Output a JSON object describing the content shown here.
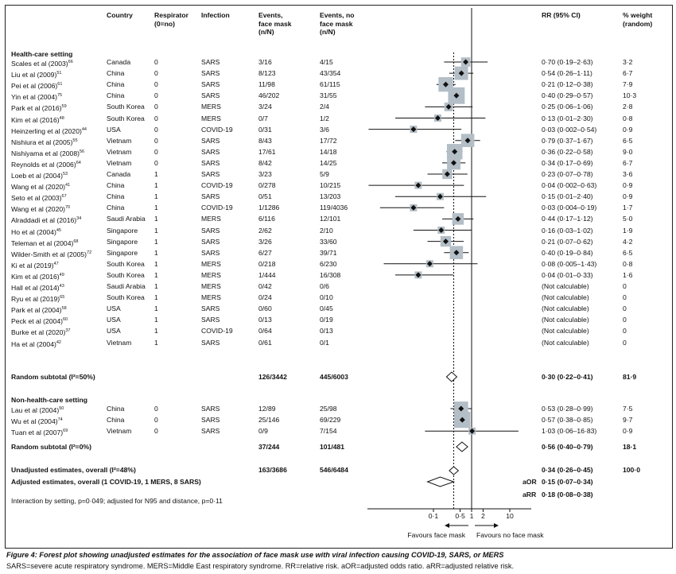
{
  "headers": {
    "country": "Country",
    "respirator": "Respirator\n(0=no)",
    "infection": "Infection",
    "events_mask": "Events,\nface mask\n(n/N)",
    "events_nomask": "Events, no\nface mask\n(n/N)",
    "rr": "RR (95% CI)",
    "weight": "% weight\n(random)"
  },
  "sections": {
    "hcs": "Health-care setting",
    "nhcs": "Non-health-care setting"
  },
  "studies": [
    {
      "study": "Scales et al (2003)",
      "ref": "66",
      "country": "Canada",
      "resp": "0",
      "infection": "SARS",
      "mask": "3/16",
      "nomask": "4/15",
      "rr_text": "0·70 (0·19–2·63)",
      "weight": "3·2",
      "rr": 0.7,
      "lo": 0.19,
      "hi": 2.63,
      "w": 3.2,
      "group": "hcs"
    },
    {
      "study": "Liu et al (2009)",
      "ref": "51",
      "country": "China",
      "resp": "0",
      "infection": "SARS",
      "mask": "8/123",
      "nomask": "43/354",
      "rr_text": "0·54 (0·26–1·11)",
      "weight": "6·7",
      "rr": 0.54,
      "lo": 0.26,
      "hi": 1.11,
      "w": 6.7,
      "group": "hcs"
    },
    {
      "study": "Pei et al (2006)",
      "ref": "61",
      "country": "China",
      "resp": "0",
      "infection": "SARS",
      "mask": "11/98",
      "nomask": "61/115",
      "rr_text": "0·21 (0·12–0·38)",
      "weight": "7·9",
      "rr": 0.21,
      "lo": 0.12,
      "hi": 0.38,
      "w": 7.9,
      "group": "hcs"
    },
    {
      "study": "Yin et al (2004)",
      "ref": "75",
      "country": "China",
      "resp": "0",
      "infection": "SARS",
      "mask": "46/202",
      "nomask": "31/55",
      "rr_text": "0·40 (0·29–0·57)",
      "weight": "10·3",
      "rr": 0.4,
      "lo": 0.29,
      "hi": 0.57,
      "w": 10.3,
      "group": "hcs"
    },
    {
      "study": "Park et al (2016)",
      "ref": "59",
      "country": "South Korea",
      "resp": "0",
      "infection": "MERS",
      "mask": "3/24",
      "nomask": "2/4",
      "rr_text": "0·25 (0·06–1·06)",
      "weight": "2·8",
      "rr": 0.25,
      "lo": 0.06,
      "hi": 1.06,
      "w": 2.8,
      "group": "hcs"
    },
    {
      "study": "Kim et al (2016)",
      "ref": "48",
      "country": "South Korea",
      "resp": "0",
      "infection": "MERS",
      "mask": "0/7",
      "nomask": "1/2",
      "rr_text": "0·13 (0·01–2·30)",
      "weight": "0·8",
      "rr": 0.13,
      "lo": 0.01,
      "hi": 2.3,
      "w": 0.8,
      "group": "hcs"
    },
    {
      "study": "Heinzerling et al (2020)",
      "ref": "44",
      "country": "USA",
      "resp": "0",
      "infection": "COVID-19",
      "mask": "0/31",
      "nomask": "3/6",
      "rr_text": "0·03 (0·002–0·54)",
      "weight": "0·9",
      "rr": 0.03,
      "lo": 0.002,
      "hi": 0.54,
      "w": 0.9,
      "group": "hcs"
    },
    {
      "study": "Nishiura et al (2005)",
      "ref": "55",
      "country": "Vietnam",
      "resp": "0",
      "infection": "SARS",
      "mask": "8/43",
      "nomask": "17/72",
      "rr_text": "0·79 (0·37–1·67)",
      "weight": "6·5",
      "rr": 0.79,
      "lo": 0.37,
      "hi": 1.67,
      "w": 6.5,
      "group": "hcs"
    },
    {
      "study": "Nishiyama et al (2008)",
      "ref": "56",
      "country": "Vietnam",
      "resp": "0",
      "infection": "SARS",
      "mask": "17/61",
      "nomask": "14/18",
      "rr_text": "0·36 (0·22–0·58)",
      "weight": "9·0",
      "rr": 0.36,
      "lo": 0.22,
      "hi": 0.58,
      "w": 9.0,
      "group": "hcs"
    },
    {
      "study": "Reynolds et al (2006)",
      "ref": "64",
      "country": "Vietnam",
      "resp": "0",
      "infection": "SARS",
      "mask": "8/42",
      "nomask": "14/25",
      "rr_text": "0·34 (0·17–0·69)",
      "weight": "6·7",
      "rr": 0.34,
      "lo": 0.17,
      "hi": 0.69,
      "w": 6.7,
      "group": "hcs"
    },
    {
      "study": "Loeb et al (2004)",
      "ref": "53",
      "country": "Canada",
      "resp": "1",
      "infection": "SARS",
      "mask": "3/23",
      "nomask": "5/9",
      "rr_text": "0·23 (0·07–0·78)",
      "weight": "3·6",
      "rr": 0.23,
      "lo": 0.07,
      "hi": 0.78,
      "w": 3.6,
      "group": "hcs"
    },
    {
      "study": "Wang et al (2020)",
      "ref": "41",
      "country": "China",
      "resp": "1",
      "infection": "COVID-19",
      "mask": "0/278",
      "nomask": "10/215",
      "rr_text": "0·04 (0·002–0·63)",
      "weight": "0·9",
      "rr": 0.04,
      "lo": 0.002,
      "hi": 0.63,
      "w": 0.9,
      "group": "hcs"
    },
    {
      "study": "Seto et al (2003)",
      "ref": "67",
      "country": "China",
      "resp": "1",
      "infection": "SARS",
      "mask": "0/51",
      "nomask": "13/203",
      "rr_text": "0·15 (0·01–2·40)",
      "weight": "0·9",
      "rr": 0.15,
      "lo": 0.01,
      "hi": 2.4,
      "w": 0.9,
      "group": "hcs"
    },
    {
      "study": "Wang et al (2020)",
      "ref": "70",
      "country": "China",
      "resp": "1",
      "infection": "COVID-19",
      "mask": "1/1286",
      "nomask": "119/4036",
      "rr_text": "0·03 (0·004–0·19)",
      "weight": "1·7",
      "rr": 0.03,
      "lo": 0.004,
      "hi": 0.19,
      "w": 1.7,
      "group": "hcs"
    },
    {
      "study": "Alraddadi et al (2016)",
      "ref": "34",
      "country": "Saudi Arabia",
      "resp": "1",
      "infection": "MERS",
      "mask": "6/116",
      "nomask": "12/101",
      "rr_text": "0·44 (0·17–1·12)",
      "weight": "5·0",
      "rr": 0.44,
      "lo": 0.17,
      "hi": 1.12,
      "w": 5.0,
      "group": "hcs"
    },
    {
      "study": "Ho et al (2004)",
      "ref": "45",
      "country": "Singapore",
      "resp": "1",
      "infection": "SARS",
      "mask": "2/62",
      "nomask": "2/10",
      "rr_text": "0·16 (0·03–1·02)",
      "weight": "1·9",
      "rr": 0.16,
      "lo": 0.03,
      "hi": 1.02,
      "w": 1.9,
      "group": "hcs"
    },
    {
      "study": "Teleman et al (2004)",
      "ref": "68",
      "country": "Singapore",
      "resp": "1",
      "infection": "SARS",
      "mask": "3/26",
      "nomask": "33/60",
      "rr_text": "0·21 (0·07–0·62)",
      "weight": "4·2",
      "rr": 0.21,
      "lo": 0.07,
      "hi": 0.62,
      "w": 4.2,
      "group": "hcs"
    },
    {
      "study": "Wilder-Smith et al (2005)",
      "ref": "72",
      "country": "Singapore",
      "resp": "1",
      "infection": "SARS",
      "mask": "6/27",
      "nomask": "39/71",
      "rr_text": "0·40 (0·19–0·84)",
      "weight": "6·5",
      "rr": 0.4,
      "lo": 0.19,
      "hi": 0.84,
      "w": 6.5,
      "group": "hcs"
    },
    {
      "study": "Ki et al (2019)",
      "ref": "47",
      "country": "South Korea",
      "resp": "1",
      "infection": "MERS",
      "mask": "0/218",
      "nomask": "6/230",
      "rr_text": "0·08 (0·005–1·43)",
      "weight": "0·8",
      "rr": 0.08,
      "lo": 0.005,
      "hi": 1.43,
      "w": 0.8,
      "group": "hcs"
    },
    {
      "study": "Kim et al (2016)",
      "ref": "49",
      "country": "South Korea",
      "resp": "1",
      "infection": "MERS",
      "mask": "1/444",
      "nomask": "16/308",
      "rr_text": "0·04 (0·01–0·33)",
      "weight": "1·6",
      "rr": 0.04,
      "lo": 0.01,
      "hi": 0.33,
      "w": 1.6,
      "group": "hcs"
    },
    {
      "study": "Hall et al (2014)",
      "ref": "43",
      "country": "Saudi Arabia",
      "resp": "1",
      "infection": "MERS",
      "mask": "0/42",
      "nomask": "0/6",
      "rr_text": "(Not calculable)",
      "weight": "0",
      "rr": null,
      "lo": null,
      "hi": null,
      "w": 0,
      "group": "hcs"
    },
    {
      "study": "Ryu et al (2019)",
      "ref": "65",
      "country": "South Korea",
      "resp": "1",
      "infection": "MERS",
      "mask": "0/24",
      "nomask": "0/10",
      "rr_text": "(Not calculable)",
      "weight": "0",
      "rr": null,
      "lo": null,
      "hi": null,
      "w": 0,
      "group": "hcs"
    },
    {
      "study": "Park et al (2004)",
      "ref": "58",
      "country": "USA",
      "resp": "1",
      "infection": "SARS",
      "mask": "0/60",
      "nomask": "0/45",
      "rr_text": "(Not calculable)",
      "weight": "0",
      "rr": null,
      "lo": null,
      "hi": null,
      "w": 0,
      "group": "hcs"
    },
    {
      "study": "Peck et al (2004)",
      "ref": "60",
      "country": "USA",
      "resp": "1",
      "infection": "SARS",
      "mask": "0/13",
      "nomask": "0/19",
      "rr_text": "(Not calculable)",
      "weight": "0",
      "rr": null,
      "lo": null,
      "hi": null,
      "w": 0,
      "group": "hcs"
    },
    {
      "study": "Burke et al (2020)",
      "ref": "37",
      "country": "USA",
      "resp": "1",
      "infection": "COVID-19",
      "mask": "0/64",
      "nomask": "0/13",
      "rr_text": "(Not calculable)",
      "weight": "0",
      "rr": null,
      "lo": null,
      "hi": null,
      "w": 0,
      "group": "hcs"
    },
    {
      "study": "Ha et al (2004)",
      "ref": "42",
      "country": "Vietnam",
      "resp": "1",
      "infection": "SARS",
      "mask": "0/61",
      "nomask": "0/1",
      "rr_text": "(Not calculable)",
      "weight": "0",
      "rr": null,
      "lo": null,
      "hi": null,
      "w": 0,
      "group": "hcs"
    },
    {
      "study": "Lau et al (2004)",
      "ref": "50",
      "country": "China",
      "resp": "0",
      "infection": "SARS",
      "mask": "12/89",
      "nomask": "25/98",
      "rr_text": "0·53 (0·28–0·99)",
      "weight": "7·5",
      "rr": 0.53,
      "lo": 0.28,
      "hi": 0.99,
      "w": 7.5,
      "group": "nhcs"
    },
    {
      "study": "Wu et al (2004)",
      "ref": "74",
      "country": "China",
      "resp": "0",
      "infection": "SARS",
      "mask": "25/146",
      "nomask": "69/229",
      "rr_text": "0·57 (0·38–0·85)",
      "weight": "9·7",
      "rr": 0.57,
      "lo": 0.38,
      "hi": 0.85,
      "w": 9.7,
      "group": "nhcs"
    },
    {
      "study": "Tuan et al (2007)",
      "ref": "69",
      "country": "Vietnam",
      "resp": "0",
      "infection": "SARS",
      "mask": "0/9",
      "nomask": "7/154",
      "rr_text": "1·03 (0·06–16·83)",
      "weight": "0·9",
      "rr": 1.03,
      "lo": 0.06,
      "hi": 16.83,
      "w": 0.9,
      "group": "nhcs"
    }
  ],
  "subtotals": {
    "hcs": {
      "label": "Random subtotal (I²=50%)",
      "mask": "126/3442",
      "nomask": "445/6003",
      "rr_text": "0·30 (0·22–0·41)",
      "weight": "81·9",
      "rr": 0.3,
      "lo": 0.22,
      "hi": 0.41
    },
    "nhcs": {
      "label": "Random subtotal (I²=0%)",
      "mask": "37/244",
      "nomask": "101/481",
      "rr_text": "0·56 (0·40–0·79)",
      "weight": "18·1",
      "rr": 0.56,
      "lo": 0.4,
      "hi": 0.79
    }
  },
  "overall": {
    "unadj_label": "Unadjusted estimates, overall (I²=48%)",
    "unadj_mask": "163/3686",
    "unadj_nomask": "546/6484",
    "unadj_rr_text": "0·34 (0·26–0·45)",
    "unadj_weight": "100·0",
    "unadj_rr": 0.34,
    "unadj_lo": 0.26,
    "unadj_hi": 0.45,
    "adj_label": "Adjusted estimates, overall (1 COVID-19, 1 MERS, 8 SARS)",
    "aor_label": "aOR",
    "aor_text": "0·15 (0·07–0·34)",
    "aor": 0.15,
    "aor_lo": 0.07,
    "aor_hi": 0.34,
    "arr_label": "aRR",
    "arr_text": "0·18 (0·08–0·38)"
  },
  "interaction_note": "Interaction by setting, p=0·049; adjusted for N95 and distance, p=0·11",
  "axis": {
    "ticks": [
      "0·1",
      "0·5",
      "1",
      "2",
      "10"
    ],
    "favours_left": "Favours face mask",
    "favours_right": "Favours no face mask"
  },
  "caption": {
    "title": "Figure 4: Forest plot showing unadjusted estimates for the association of face mask use with viral infection causing COVID-19, SARS, or MERS",
    "abbr": "SARS=severe acute respiratory syndrome. MERS=Middle East respiratory syndrome. RR=relative risk. aOR=adjusted odds ratio. aRR=adjusted relative risk."
  },
  "colors": {
    "box": "#b3bec6",
    "diamond_fill": "#ffffff",
    "line": "#111111"
  }
}
